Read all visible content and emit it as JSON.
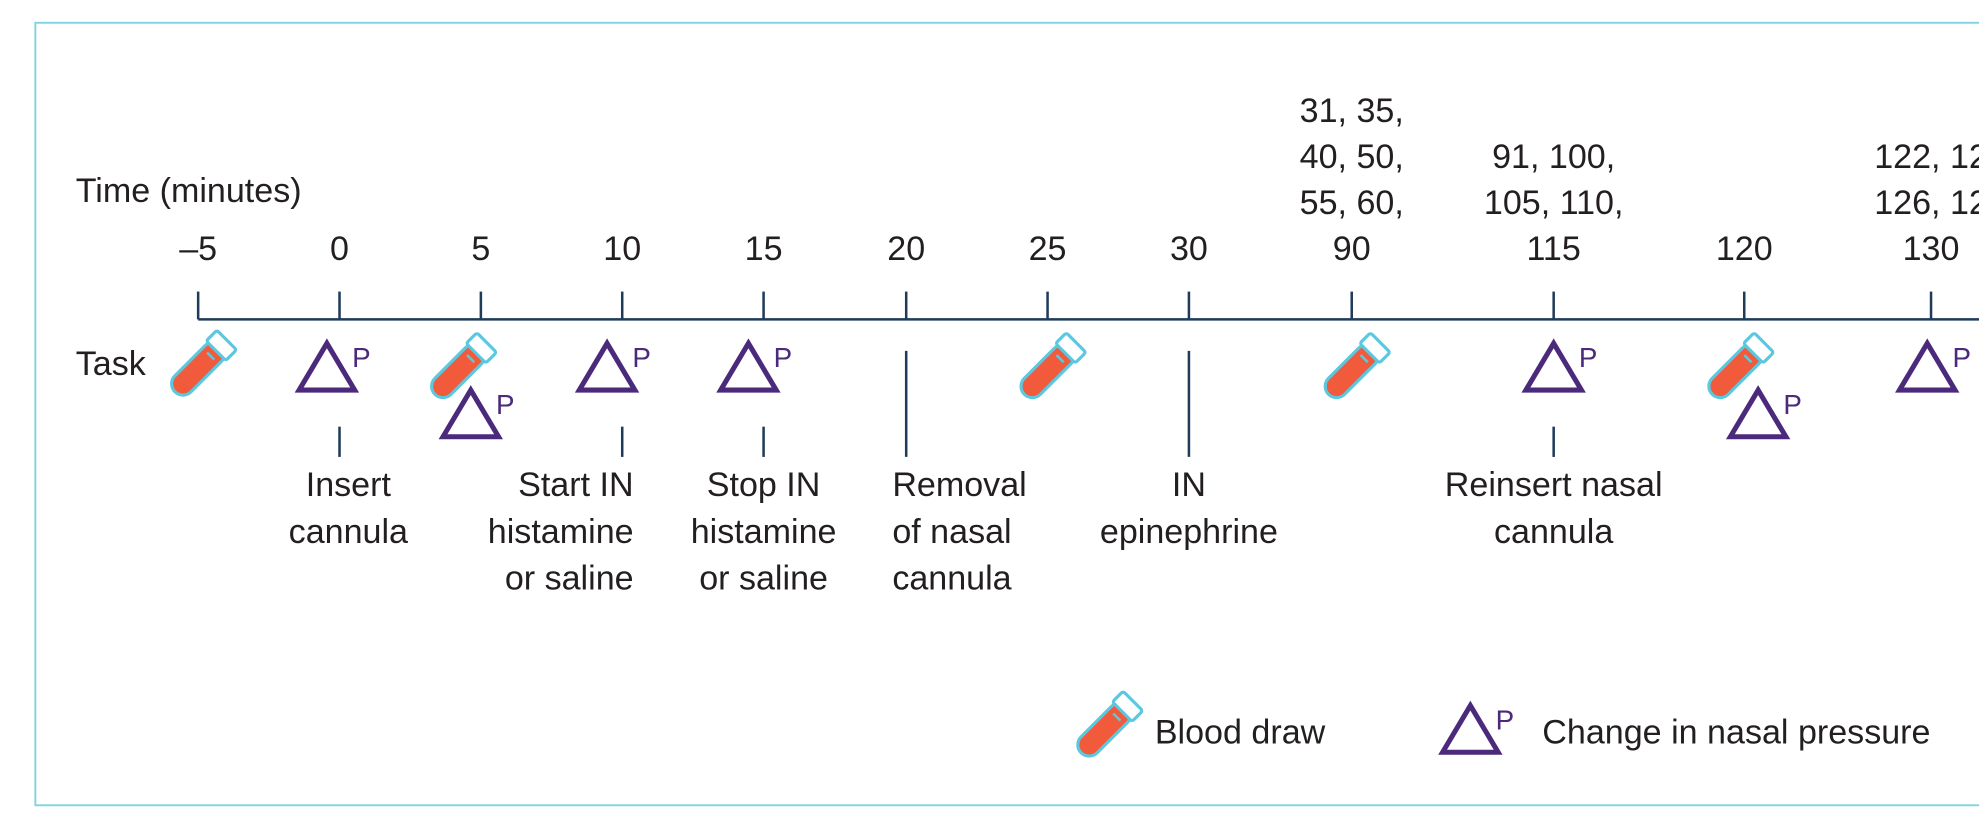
{
  "axis_label": "Time (minutes)",
  "row_label": "Task",
  "ticks": [
    [
      "–5"
    ],
    [
      "0"
    ],
    [
      "5"
    ],
    [
      "10"
    ],
    [
      "15"
    ],
    [
      "20"
    ],
    [
      "25"
    ],
    [
      "30"
    ],
    [
      "31, 35,",
      "40, 50,",
      "55, 60,",
      "90"
    ],
    [
      "91, 100,",
      "105, 110,",
      "115"
    ],
    [
      "120"
    ],
    [
      "122, 12",
      "126, 12",
      "130"
    ]
  ],
  "tasks": [
    [
      "Insert",
      "cannula"
    ],
    [
      "Start IN",
      "histamine",
      "or saline"
    ],
    [
      "Stop IN",
      "histamine",
      "or saline"
    ],
    [
      "Removal",
      "of nasal",
      "cannula"
    ],
    [
      "IN",
      "epinephrine"
    ],
    [
      "Reinsert nasal",
      "cannula"
    ]
  ],
  "legend": {
    "blood": "Blood draw",
    "pressure": "Change in nasal pressure",
    "pressure_symbol": "P"
  }
}
